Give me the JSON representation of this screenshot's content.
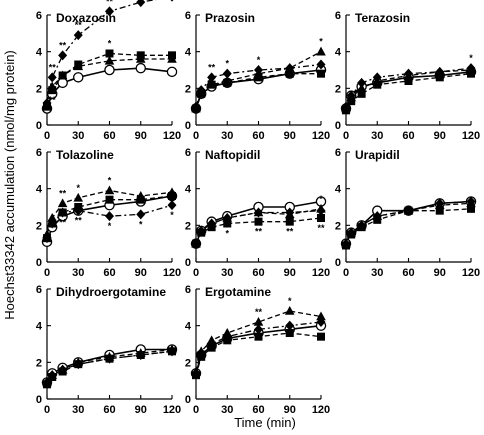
{
  "chart_data": {
    "type": "line",
    "ylabel": "Hoechst33342 accumulation (nmol/mg protein)",
    "xlabel": "Time (min)",
    "x": [
      0,
      5,
      15,
      30,
      60,
      90,
      120
    ],
    "xticks": [
      0,
      30,
      60,
      90,
      120
    ],
    "xlim": [
      0,
      120
    ],
    "ylim": [
      0,
      6
    ],
    "yticks": [
      0,
      2,
      4,
      6
    ],
    "panels": [
      {
        "title": "Doxazosin",
        "series": [
          {
            "marker": "circle-open",
            "line": "solid",
            "values": [
              0.9,
              1.7,
              2.3,
              2.6,
              3.0,
              3.1,
              2.9
            ]
          },
          {
            "marker": "square",
            "line": "dash",
            "values": [
              1.0,
              1.9,
              2.7,
              3.3,
              3.9,
              3.8,
              3.8
            ]
          },
          {
            "marker": "triangle",
            "line": "dash",
            "values": [
              1.0,
              2.1,
              2.7,
              3.2,
              3.5,
              3.6,
              3.6
            ]
          },
          {
            "marker": "diamond",
            "line": "dashdot",
            "values": [
              1.2,
              2.6,
              3.8,
              4.9,
              6.2,
              6.7,
              7.0
            ]
          }
        ],
        "annotations": [
          "**",
          "**",
          "**",
          "**",
          "**",
          "**",
          "*",
          "**"
        ]
      },
      {
        "title": "Prazosin",
        "series": [
          {
            "marker": "circle-open",
            "line": "solid",
            "values": [
              0.9,
              1.7,
              2.1,
              2.3,
              2.5,
              2.8,
              3.0
            ]
          },
          {
            "marker": "square",
            "line": "dash",
            "values": [
              0.9,
              1.7,
              2.2,
              2.3,
              2.6,
              2.8,
              2.8
            ]
          },
          {
            "marker": "triangle",
            "line": "dash",
            "values": [
              0.9,
              1.8,
              2.2,
              2.4,
              2.8,
              3.1,
              4.0
            ]
          },
          {
            "marker": "diamond",
            "line": "dashdot",
            "values": [
              1.0,
              1.9,
              2.6,
              2.8,
              3.0,
              3.1,
              3.3
            ]
          }
        ],
        "annotations": [
          "**",
          "*",
          "*",
          "*"
        ]
      },
      {
        "title": "Terazosin",
        "series": [
          {
            "marker": "circle-open",
            "line": "solid",
            "values": [
              0.9,
              1.6,
              2.1,
              2.3,
              2.6,
              2.7,
              2.9
            ]
          },
          {
            "marker": "square",
            "line": "dash",
            "values": [
              0.8,
              1.3,
              1.7,
              2.2,
              2.4,
              2.6,
              2.8
            ]
          },
          {
            "marker": "triangle",
            "line": "dash",
            "values": [
              0.9,
              1.5,
              2.0,
              2.4,
              2.7,
              2.9,
              3.0
            ]
          },
          {
            "marker": "diamond",
            "line": "dashdot",
            "values": [
              1.0,
              1.6,
              2.3,
              2.6,
              2.8,
              2.9,
              3.1
            ]
          }
        ],
        "annotations": [
          "*"
        ]
      },
      {
        "title": "Tolazoline",
        "series": [
          {
            "marker": "circle-open",
            "line": "solid",
            "values": [
              1.1,
              1.9,
              2.5,
              2.8,
              3.1,
              3.3,
              3.6
            ]
          },
          {
            "marker": "square",
            "line": "dash",
            "values": [
              1.3,
              2.1,
              2.7,
              3.0,
              3.4,
              3.4,
              3.6
            ]
          },
          {
            "marker": "triangle",
            "line": "dash",
            "values": [
              1.5,
              2.4,
              3.2,
              3.5,
              3.9,
              3.6,
              3.8
            ]
          },
          {
            "marker": "diamond",
            "line": "dashdot",
            "values": [
              1.3,
              2.1,
              2.7,
              2.8,
              2.5,
              2.6,
              3.1
            ]
          }
        ],
        "annotations": [
          "**",
          "*",
          "**",
          "**",
          "*",
          "*",
          "*",
          "*"
        ]
      },
      {
        "title": "Naftopidil",
        "series": [
          {
            "marker": "circle-open",
            "line": "solid",
            "values": [
              1.0,
              1.7,
              2.2,
              2.5,
              3.0,
              3.0,
              3.3
            ]
          },
          {
            "marker": "square",
            "line": "dash",
            "values": [
              1.0,
              1.6,
              1.9,
              2.1,
              2.2,
              2.2,
              2.4
            ]
          },
          {
            "marker": "triangle",
            "line": "dash",
            "values": [
              1.0,
              1.7,
              2.1,
              2.4,
              2.7,
              2.6,
              2.9
            ]
          },
          {
            "marker": "diamond",
            "line": "dashdot",
            "values": [
              1.0,
              1.7,
              2.1,
              2.4,
              2.7,
              2.7,
              2.8
            ]
          }
        ],
        "annotations": [
          "*",
          "**",
          "**",
          "*",
          "**"
        ]
      },
      {
        "title": "Urapidil",
        "series": [
          {
            "marker": "circle-open",
            "line": "solid",
            "values": [
              1.0,
              1.6,
              2.0,
              2.8,
              2.8,
              3.2,
              3.3
            ]
          },
          {
            "marker": "square",
            "line": "dash",
            "values": [
              0.9,
              1.5,
              1.9,
              2.3,
              2.8,
              2.8,
              2.9
            ]
          },
          {
            "marker": "triangle",
            "line": "dash",
            "values": [
              1.0,
              1.6,
              2.0,
              2.5,
              2.8,
              3.1,
              3.2
            ]
          },
          {
            "marker": "diamond",
            "line": "dashdot",
            "values": [
              1.0,
              1.6,
              2.0,
              2.5,
              2.8,
              3.2,
              3.3
            ]
          }
        ],
        "annotations": []
      },
      {
        "title": "Dihydroergotamine",
        "series": [
          {
            "marker": "circle-open",
            "line": "solid",
            "values": [
              0.9,
              1.4,
              1.7,
              2.0,
              2.4,
              2.7,
              2.7
            ]
          },
          {
            "marker": "square",
            "line": "dash",
            "values": [
              0.8,
              1.2,
              1.5,
              1.9,
              2.2,
              2.4,
              2.6
            ]
          },
          {
            "marker": "triangle",
            "line": "dash",
            "values": [
              0.9,
              1.3,
              1.6,
              2.0,
              2.3,
              2.5,
              2.7
            ]
          },
          {
            "marker": "diamond",
            "line": "dashdot",
            "values": [
              0.9,
              1.3,
              1.6,
              1.9,
              2.2,
              2.4,
              2.6
            ]
          }
        ],
        "annotations": []
      },
      {
        "title": "Ergotamine",
        "series": [
          {
            "marker": "circle-open",
            "line": "solid",
            "values": [
              1.4,
              2.4,
              2.9,
              3.3,
              3.6,
              3.8,
              4.0
            ]
          },
          {
            "marker": "square",
            "line": "dash",
            "values": [
              1.3,
              2.3,
              2.8,
              3.2,
              3.4,
              3.6,
              3.4
            ]
          },
          {
            "marker": "triangle",
            "line": "dash",
            "values": [
              1.5,
              2.6,
              3.2,
              3.6,
              4.2,
              4.8,
              4.5
            ]
          },
          {
            "marker": "diamond",
            "line": "dashdot",
            "values": [
              1.4,
              2.4,
              3.0,
              3.4,
              3.8,
              4.0,
              4.2
            ]
          }
        ],
        "annotations": [
          "**",
          "*"
        ]
      }
    ]
  }
}
